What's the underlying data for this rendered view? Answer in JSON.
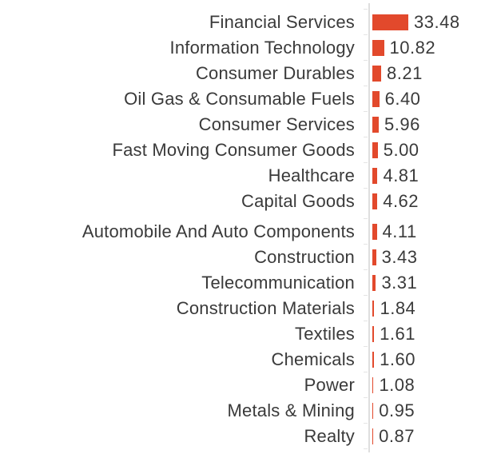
{
  "chart_data": {
    "type": "bar",
    "orientation": "horizontal",
    "title": "",
    "xlabel": "",
    "ylabel": "",
    "grid": false,
    "legend": false,
    "xlim": [
      0,
      35
    ],
    "categories": [
      "Financial Services",
      "Information Technology",
      "Consumer Durables",
      "Oil Gas & Consumable Fuels",
      "Consumer Services",
      "Fast Moving Consumer Goods",
      "Healthcare",
      "Capital Goods",
      "Automobile And Auto Components",
      "Construction",
      "Telecommunication",
      "Construction Materials",
      "Textiles",
      "Chemicals",
      "Power",
      "Metals & Mining",
      "Realty"
    ],
    "values": [
      33.48,
      10.82,
      8.21,
      6.4,
      5.96,
      5.0,
      4.81,
      4.62,
      4.11,
      3.43,
      3.31,
      1.84,
      1.61,
      1.6,
      1.08,
      0.95,
      0.87
    ],
    "value_labels": [
      "33.48",
      "10.82",
      "8.21",
      "6.40",
      "5.96",
      "5.00",
      "4.81",
      "4.62",
      "4.11",
      "3.43",
      "3.31",
      "1.84",
      "1.61",
      "1.60",
      "1.08",
      "0.95",
      "0.87"
    ],
    "colors": {
      "bar": "#e2492c",
      "axis": "#dedede",
      "tick": "#e4e4e4",
      "text": "#3a3a3a"
    }
  }
}
